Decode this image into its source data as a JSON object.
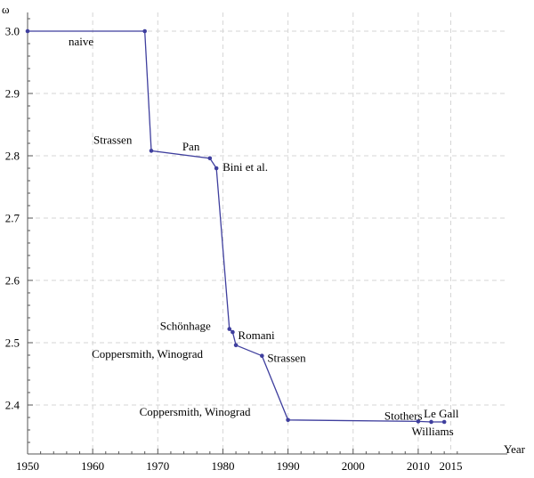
{
  "chart_data": {
    "type": "line",
    "title": "",
    "xlabel": "Year",
    "ylabel": "ω",
    "xlim": [
      1950,
      2016
    ],
    "ylim": [
      2.33,
      3.03
    ],
    "x_ticks": [
      1950,
      1960,
      1970,
      1980,
      1990,
      2000,
      2010,
      2015
    ],
    "x_tick_labels": [
      "1950",
      "1960",
      "1970",
      "1980",
      "1990",
      "2000",
      "2010",
      "2015"
    ],
    "y_ticks": [
      2.4,
      2.5,
      2.6,
      2.7,
      2.8,
      2.9,
      3.0
    ],
    "y_tick_labels": [
      "2.4",
      "2.5",
      "2.6",
      "2.7",
      "2.8",
      "2.9",
      "3.0"
    ],
    "grid": true,
    "line_color": "#3f3f9e",
    "grid_color": "#d6d6d6",
    "series": [
      {
        "points": [
          {
            "x": 1950,
            "y": 3.0,
            "label": "naive"
          },
          {
            "x": 1968,
            "y": 3.0,
            "label": ""
          },
          {
            "x": 1969,
            "y": 2.808,
            "label": "Strassen"
          },
          {
            "x": 1978,
            "y": 2.796,
            "label": "Pan"
          },
          {
            "x": 1979,
            "y": 2.78,
            "label": "Bini et al."
          },
          {
            "x": 1981,
            "y": 2.522,
            "label": "Schönhage"
          },
          {
            "x": 1981.5,
            "y": 2.517,
            "label": "Romani"
          },
          {
            "x": 1982,
            "y": 2.496,
            "label": "Coppersmith, Winograd"
          },
          {
            "x": 1986,
            "y": 2.479,
            "label": "Strassen"
          },
          {
            "x": 1990,
            "y": 2.376,
            "label": "Coppersmith, Winograd"
          },
          {
            "x": 2010,
            "y": 2.3737,
            "label": "Stothers"
          },
          {
            "x": 2012,
            "y": 2.3729,
            "label": "Williams"
          },
          {
            "x": 2014,
            "y": 2.3728639,
            "label": "Le Gall"
          }
        ]
      }
    ]
  }
}
